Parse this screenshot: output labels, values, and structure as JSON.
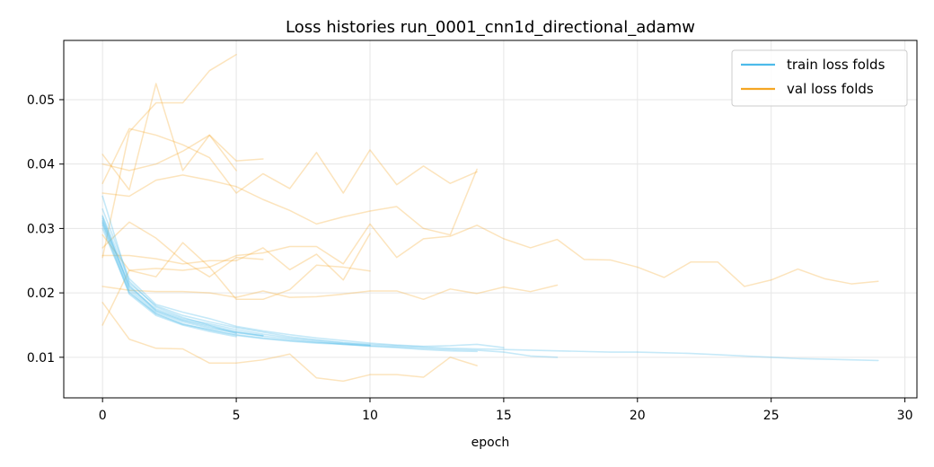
{
  "chart_data": {
    "type": "line",
    "title": "Loss histories run_0001_cnn1d_directional_adamw",
    "xlabel": "epoch",
    "ylabel": "",
    "xlim": [
      -1.45,
      30.45
    ],
    "ylim": [
      0.0037,
      0.0592
    ],
    "xticks": [
      0,
      5,
      10,
      15,
      20,
      25,
      30
    ],
    "yticks": [
      0.01,
      0.02,
      0.03,
      0.04,
      0.05
    ],
    "grid": true,
    "legend_position": "top-right",
    "colors": {
      "train": "#4dbbea",
      "val": "#f5a623"
    },
    "legend": [
      {
        "label": "train loss folds",
        "color": "#4dbbea"
      },
      {
        "label": "val loss folds",
        "color": "#f5a623"
      }
    ],
    "train_series": [
      {
        "values": [
          0.031,
          0.0205,
          0.017,
          0.0155,
          0.0145,
          0.0138,
          0.0133,
          0.0128,
          0.0124,
          0.012,
          0.0117,
          0.0115,
          0.0112,
          0.011,
          0.0109
        ]
      },
      {
        "values": [
          0.035,
          0.0215,
          0.018,
          0.0165,
          0.0155,
          0.0146,
          0.0139,
          0.0132,
          0.0127,
          0.0123,
          0.012,
          0.0118,
          0.0116,
          0.0114,
          0.0113,
          0.0112,
          0.0111,
          0.011,
          0.0109,
          0.0108,
          0.0108,
          0.0107,
          0.0106,
          0.0104,
          0.0102,
          0.01,
          0.0098,
          0.0097,
          0.0096,
          0.0095
        ]
      },
      {
        "values": [
          0.03,
          0.02,
          0.0168,
          0.0152,
          0.0142,
          0.0134,
          0.0129,
          0.0125,
          0.0122,
          0.012,
          0.0118,
          0.0116,
          0.0114,
          0.0112,
          0.0111,
          0.0108,
          0.0102,
          0.01
        ]
      },
      {
        "values": [
          0.032,
          0.0218,
          0.0178,
          0.0162,
          0.015,
          0.014,
          0.0134
        ]
      },
      {
        "values": [
          0.0315,
          0.021,
          0.0175,
          0.016,
          0.0152,
          0.0143,
          0.0136,
          0.013,
          0.0126,
          0.0122,
          0.0119
        ]
      },
      {
        "values": [
          0.0305,
          0.0198,
          0.0165,
          0.015,
          0.014,
          0.0132
        ]
      },
      {
        "values": [
          0.033,
          0.0222,
          0.0182,
          0.017,
          0.016,
          0.0148,
          0.0141,
          0.0135,
          0.013,
          0.0126,
          0.0122,
          0.0119,
          0.0117,
          0.0118,
          0.012,
          0.0115
        ]
      },
      {
        "values": [
          0.0312,
          0.0212,
          0.0172,
          0.0157,
          0.0147,
          0.0139,
          0.0133
        ]
      },
      {
        "values": [
          0.0308,
          0.0202,
          0.0167,
          0.0151,
          0.0143,
          0.0135,
          0.013,
          0.0126,
          0.0123,
          0.0121,
          0.0118
        ]
      },
      {
        "values": [
          0.0318,
          0.0208,
          0.0173,
          0.0158,
          0.0149,
          0.0137
        ]
      }
    ],
    "val_series": [
      {
        "values": [
          0.0255,
          0.045,
          0.0495,
          0.0495,
          0.0545,
          0.057
        ]
      },
      {
        "values": [
          0.04,
          0.039,
          0.04,
          0.042,
          0.0445,
          0.0405,
          0.0408
        ]
      },
      {
        "values": [
          0.0415,
          0.036,
          0.0525,
          0.039,
          0.0445,
          0.039
        ]
      },
      {
        "values": [
          0.037,
          0.0455,
          0.0445,
          0.043,
          0.041,
          0.0355,
          0.0385,
          0.0362,
          0.0418,
          0.0355,
          0.0422,
          0.0368,
          0.0397,
          0.037,
          0.0388
        ]
      },
      {
        "values": [
          0.0355,
          0.035,
          0.0375,
          0.0383,
          0.0375,
          0.0365,
          0.0345,
          0.0328,
          0.0307,
          0.0318,
          0.0327,
          0.0334,
          0.03,
          0.029,
          0.0392
        ]
      },
      {
        "values": [
          0.027,
          0.031,
          0.0285,
          0.025,
          0.0225,
          0.0255,
          0.0252
        ]
      },
      {
        "values": [
          0.015,
          0.0235,
          0.0238,
          0.0235,
          0.024,
          0.0258,
          0.0262,
          0.0272,
          0.0272,
          0.0245,
          0.0307,
          0.0255,
          0.0284,
          0.0288,
          0.0305,
          0.0284,
          0.027,
          0.0283,
          0.0252,
          0.0251,
          0.024,
          0.0224,
          0.0248,
          0.0248,
          0.021,
          0.022,
          0.0237,
          0.0222,
          0.0214,
          0.0218
        ]
      },
      {
        "values": [
          0.0258,
          0.0258,
          0.0253,
          0.0245,
          0.025,
          0.025,
          0.027,
          0.0236,
          0.026,
          0.022,
          0.0292
        ]
      },
      {
        "values": [
          0.021,
          0.0204,
          0.0202,
          0.0202,
          0.02,
          0.0193,
          0.0203,
          0.0193,
          0.0194,
          0.0198,
          0.0203,
          0.0203,
          0.019,
          0.0206,
          0.0199,
          0.0209,
          0.0202,
          0.0212
        ]
      },
      {
        "values": [
          0.029,
          0.0235,
          0.0225,
          0.0278,
          0.024,
          0.019,
          0.019,
          0.0205,
          0.0243,
          0.024,
          0.0234
        ]
      },
      {
        "values": [
          0.0185,
          0.0128,
          0.0114,
          0.0113,
          0.0091,
          0.0091,
          0.0096,
          0.0105,
          0.0068,
          0.0063,
          0.0073,
          0.0073,
          0.0069,
          0.01,
          0.0087
        ]
      }
    ]
  }
}
